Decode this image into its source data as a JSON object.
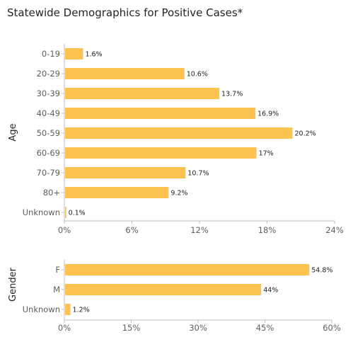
{
  "title": "Statewide Demographics for Positive Cases*",
  "colors": {
    "bar": "#FDC250",
    "axis": "#bfbfbf",
    "tick_text": "#605e5c",
    "label_text": "#252423"
  },
  "chart_data": [
    {
      "type": "bar",
      "orientation": "horizontal",
      "ylabel": "Age",
      "categories": [
        "0-19",
        "20-29",
        "30-39",
        "40-49",
        "50-59",
        "60-69",
        "70-79",
        "80+",
        "Unknown"
      ],
      "values": [
        1.6,
        10.6,
        13.7,
        16.9,
        20.2,
        17,
        10.7,
        9.2,
        0.1
      ],
      "data_labels": [
        "1.6%",
        "10.6%",
        "13.7%",
        "16.9%",
        "20.2%",
        "17%",
        "10.7%",
        "9.2%",
        "0.1%"
      ],
      "xlim": [
        0,
        24
      ],
      "x_ticks": [
        0,
        6,
        12,
        18,
        24
      ],
      "x_tick_labels": [
        "0%",
        "6%",
        "12%",
        "18%",
        "24%"
      ]
    },
    {
      "type": "bar",
      "orientation": "horizontal",
      "ylabel": "Gender",
      "categories": [
        "F",
        "M",
        "Unknown"
      ],
      "values": [
        54.8,
        44,
        1.2
      ],
      "data_labels": [
        "54.8%",
        "44%",
        "1.2%"
      ],
      "xlim": [
        0,
        60
      ],
      "x_ticks": [
        0,
        15,
        30,
        45,
        60
      ],
      "x_tick_labels": [
        "0%",
        "15%",
        "30%",
        "45%",
        "60%"
      ]
    }
  ]
}
